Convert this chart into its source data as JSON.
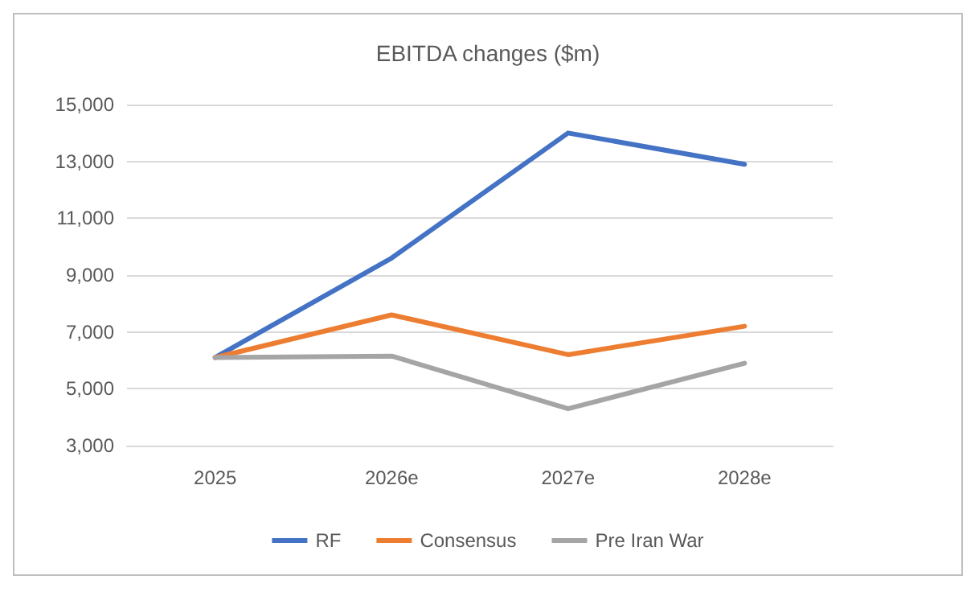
{
  "chart_data": {
    "type": "line",
    "title": "EBITDA changes ($m)",
    "categories": [
      "2025",
      "2026e",
      "2027e",
      "2028e"
    ],
    "series": [
      {
        "name": "RF",
        "color": "#4472c4",
        "values": [
          6100,
          9600,
          14000,
          12900
        ]
      },
      {
        "name": "Consensus",
        "color": "#ed7d31",
        "values": [
          6100,
          7600,
          6200,
          7200
        ]
      },
      {
        "name": "Pre Iran War",
        "color": "#a5a5a5",
        "values": [
          6100,
          6150,
          4300,
          5900
        ]
      }
    ],
    "ylim": [
      3000,
      15000
    ],
    "yticks": [
      {
        "value": 3000,
        "label": "3,000"
      },
      {
        "value": 5000,
        "label": "5,000"
      },
      {
        "value": 7000,
        "label": "7,000"
      },
      {
        "value": 9000,
        "label": "9,000"
      },
      {
        "value": 11000,
        "label": "11,000"
      },
      {
        "value": 13000,
        "label": "13,000"
      },
      {
        "value": 15000,
        "label": "15,000"
      }
    ],
    "grid": "y",
    "legend": "bottom",
    "marker": "none",
    "line_style": "solid"
  }
}
